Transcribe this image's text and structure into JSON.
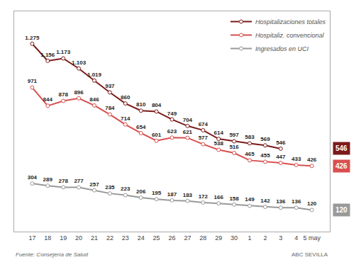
{
  "chart_data": {
    "type": "line",
    "categories": [
      "17",
      "18",
      "19",
      "20",
      "21",
      "22",
      "23",
      "24",
      "25",
      "26",
      "27",
      "28",
      "29",
      "30",
      "1",
      "2",
      "3",
      "4",
      "5 may"
    ],
    "series": [
      {
        "name": "Hospitalizaciones totales",
        "color": "#7b1a1a",
        "values": [
          1275,
          1156,
          1173,
          1103,
          1019,
          937,
          860,
          810,
          804,
          749,
          704,
          674,
          614,
          597,
          583,
          569,
          546,
          null,
          null
        ],
        "value_labels": [
          "1.275",
          "1.156",
          "1.173",
          "1.103",
          "1.019",
          "937",
          "860",
          "810",
          "804",
          "749",
          "704",
          "674",
          "614",
          "597",
          "583",
          "569",
          "546",
          null,
          null
        ]
      },
      {
        "name": "Hospitaliz. convencional",
        "color": "#d94f4f",
        "values": [
          971,
          844,
          878,
          896,
          846,
          784,
          714,
          654,
          601,
          623,
          621,
          577,
          538,
          516,
          465,
          455,
          447,
          433,
          426
        ]
      },
      {
        "name": "Ingresados en UCI",
        "color": "#999999",
        "values": [
          304,
          289,
          278,
          277,
          257,
          235,
          223,
          206,
          195,
          187,
          183,
          172,
          166,
          158,
          149,
          142,
          136,
          136,
          120
        ]
      }
    ],
    "ylim": [
      -30,
      1500
    ],
    "grid": false,
    "legend": "upper right",
    "data_labels": true,
    "tick_labels": "x",
    "marker": "circle",
    "annotations": [
      "546",
      "426",
      "120"
    ],
    "source": "Fuente: Consejería de Salud",
    "attribution": "ABC SEVILLA"
  }
}
